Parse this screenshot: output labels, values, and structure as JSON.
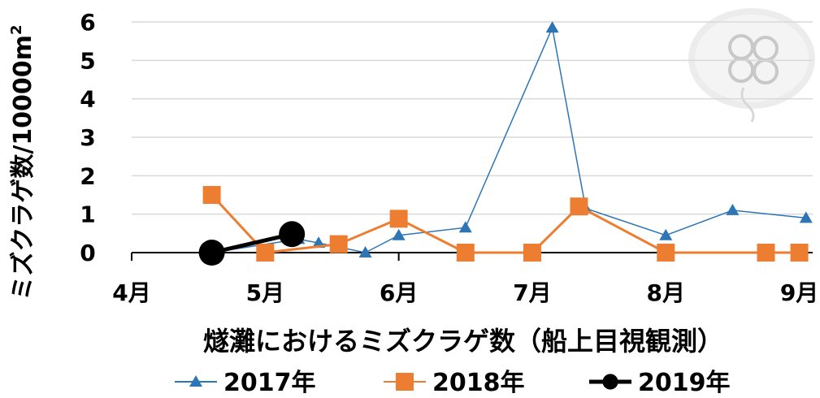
{
  "chart_data": {
    "type": "line",
    "title": "",
    "xlabel": "燧灘におけるミズクラゲ数（船上目視観測）",
    "ylabel_main": "ミズクラゲ数/10000m",
    "ylabel_sup": "2",
    "ylim": [
      0,
      6
    ],
    "y_ticks": [
      "0",
      "1",
      "2",
      "3",
      "4",
      "5",
      "6"
    ],
    "x_range": [
      4.0,
      9.1
    ],
    "x_ticks": [
      {
        "value": 4,
        "label": "4月"
      },
      {
        "value": 5,
        "label": "5月"
      },
      {
        "value": 6,
        "label": "6月"
      },
      {
        "value": 7,
        "label": "7月"
      },
      {
        "value": 8,
        "label": "8月"
      },
      {
        "value": 9,
        "label": "9月"
      }
    ],
    "legend_position": "bottom",
    "grid": true,
    "series": [
      {
        "name": "2017年",
        "color": "#2E75B6",
        "marker": "triangle",
        "points": [
          [
            4.6,
            0.0
          ],
          [
            5.25,
            0.35
          ],
          [
            5.4,
            0.25
          ],
          [
            5.75,
            0.0
          ],
          [
            6.0,
            0.45
          ],
          [
            6.5,
            0.65
          ],
          [
            7.15,
            5.85
          ],
          [
            7.4,
            1.15
          ],
          [
            8.0,
            0.45
          ],
          [
            8.5,
            1.1
          ],
          [
            9.05,
            0.9
          ]
        ]
      },
      {
        "name": "2018年",
        "color": "#ED7D31",
        "marker": "square",
        "points": [
          [
            4.6,
            1.5
          ],
          [
            5.0,
            0.0
          ],
          [
            5.55,
            0.22
          ],
          [
            6.0,
            0.88
          ],
          [
            6.5,
            0.0
          ],
          [
            7.0,
            0.0
          ],
          [
            7.35,
            1.2
          ],
          [
            8.0,
            0.0
          ],
          [
            8.75,
            0.0
          ],
          [
            9.0,
            0.0
          ]
        ]
      },
      {
        "name": "2019年",
        "color": "#000000",
        "marker": "circle",
        "points": [
          [
            4.6,
            0.0
          ],
          [
            5.2,
            0.48
          ]
        ]
      }
    ]
  }
}
